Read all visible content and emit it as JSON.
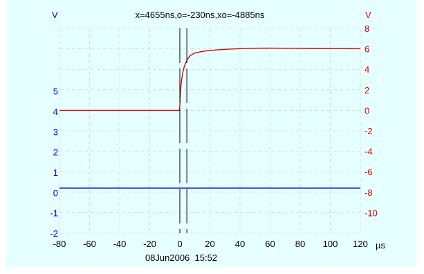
{
  "chart_data": {
    "type": "line",
    "title": "x=4655ns,o=-230ns,xo=-4885ns",
    "timestamp": "08Jun2006  15:52",
    "x_unit_label": "µs",
    "y_left_label": "V",
    "y_right_label": "V",
    "x_range": [
      -80,
      120
    ],
    "x_ticks": [
      "-80",
      "-60",
      "-40",
      "-20",
      "0",
      "20",
      "40",
      "60",
      "80",
      "100",
      "120"
    ],
    "y_left_range": [
      -2,
      7
    ],
    "y_left_ticks": [
      "-2",
      "-1",
      "0",
      "1",
      "2",
      "3",
      "4",
      "5"
    ],
    "y_right_range": [
      -12,
      8
    ],
    "y_right_ticks": [
      "8",
      "6",
      "4",
      "2",
      "0",
      "-2",
      "-4",
      "-6",
      "-8",
      "-10"
    ],
    "grid": true,
    "cursors": [
      {
        "x": 0
      },
      {
        "x": 4.655
      }
    ],
    "series": [
      {
        "axis": "right",
        "color": "#dd0000",
        "x": [
          -80,
          -1,
          -0.2,
          0,
          0.2,
          0.5,
          1,
          2,
          3,
          5,
          7,
          10,
          15,
          20,
          30,
          40,
          50,
          60,
          70,
          80,
          90,
          100,
          110,
          120
        ],
        "y": [
          0,
          0,
          0,
          0.4,
          1.3,
          2.0,
          2.8,
          3.7,
          4.3,
          5.0,
          5.35,
          5.6,
          5.75,
          5.85,
          5.95,
          6.02,
          6.06,
          6.07,
          6.06,
          6.05,
          6.04,
          6.03,
          6.02,
          6.01
        ]
      },
      {
        "axis": "right",
        "color": "#0000dd",
        "x": [
          -80,
          120
        ],
        "y": [
          -7.6,
          -7.6
        ]
      }
    ],
    "colors": {
      "plot_bg": "#e6ffff",
      "left_axis": "#0000dd",
      "right_axis": "#dd0000",
      "x_axis": "#000000",
      "grid": "#cccccc",
      "cursor": "#000000"
    }
  }
}
